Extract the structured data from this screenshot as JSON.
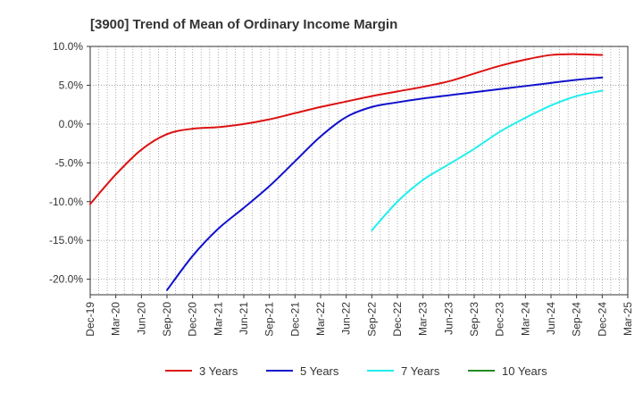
{
  "chart_data": {
    "type": "line",
    "title": "[3900]  Trend of Mean of Ordinary Income Margin",
    "xlabel": "",
    "ylabel": "",
    "ylim": [
      -22,
      10
    ],
    "y_ticks": [
      10,
      5,
      0,
      -5,
      -10,
      -15,
      -20
    ],
    "y_tick_labels": [
      "10.0%",
      "5.0%",
      "0.0%",
      "-5.0%",
      "-10.0%",
      "-15.0%",
      "-20.0%"
    ],
    "x_tick_labels": [
      "Dec-19",
      "Mar-20",
      "Jun-20",
      "Sep-20",
      "Dec-20",
      "Mar-21",
      "Jun-21",
      "Sep-21",
      "Dec-21",
      "Mar-22",
      "Jun-22",
      "Sep-22",
      "Dec-22",
      "Mar-23",
      "Jun-23",
      "Sep-23",
      "Dec-23",
      "Mar-24",
      "Jun-24",
      "Sep-24",
      "Dec-24",
      "Mar-25"
    ],
    "grid": true,
    "legend_position": "bottom",
    "series": [
      {
        "name": "3 Years",
        "color": "#dd1111",
        "x": [
          "Dec-19",
          "Mar-20",
          "Jun-20",
          "Sep-20",
          "Dec-20",
          "Mar-21",
          "Jun-21",
          "Sep-21",
          "Dec-21",
          "Mar-22",
          "Jun-22",
          "Sep-22",
          "Dec-22",
          "Mar-23",
          "Jun-23",
          "Sep-23",
          "Dec-23",
          "Mar-24",
          "Jun-24",
          "Sep-24",
          "Dec-24"
        ],
        "values": [
          -10.3,
          -6.5,
          -3.3,
          -1.3,
          -0.6,
          -0.4,
          0.0,
          0.6,
          1.4,
          2.2,
          2.9,
          3.6,
          4.2,
          4.8,
          5.5,
          6.5,
          7.5,
          8.3,
          8.9,
          9.0,
          8.9
        ]
      },
      {
        "name": "5 Years",
        "color": "#1111cc",
        "x": [
          "Sep-20",
          "Dec-20",
          "Mar-21",
          "Jun-21",
          "Sep-21",
          "Dec-21",
          "Mar-22",
          "Jun-22",
          "Sep-22",
          "Dec-22",
          "Mar-23",
          "Jun-23",
          "Sep-23",
          "Dec-23",
          "Mar-24",
          "Jun-24",
          "Sep-24",
          "Dec-24"
        ],
        "values": [
          -21.4,
          -17.0,
          -13.5,
          -10.8,
          -8.0,
          -4.8,
          -1.6,
          0.9,
          2.2,
          2.8,
          3.3,
          3.7,
          4.1,
          4.5,
          4.9,
          5.3,
          5.7,
          6.0
        ]
      },
      {
        "name": "7 Years",
        "color": "#22eeee",
        "x": [
          "Sep-22",
          "Dec-22",
          "Mar-23",
          "Jun-23",
          "Sep-23",
          "Dec-23",
          "Mar-24",
          "Jun-24",
          "Sep-24",
          "Dec-24"
        ],
        "values": [
          -13.7,
          -10.0,
          -7.2,
          -5.2,
          -3.2,
          -1.0,
          0.8,
          2.4,
          3.6,
          4.3
        ]
      },
      {
        "name": "10 Years",
        "color": "#228b22",
        "x": [],
        "values": []
      }
    ]
  }
}
